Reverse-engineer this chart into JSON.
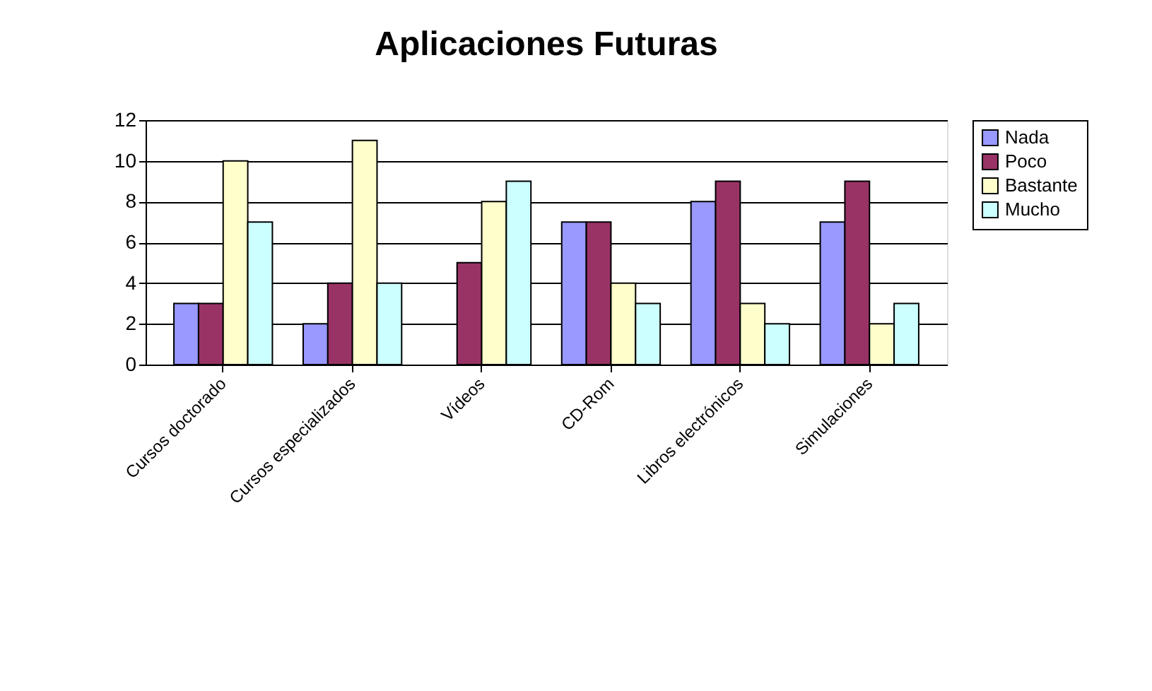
{
  "chart_data": {
    "type": "bar",
    "title": "Aplicaciones Futuras",
    "categories": [
      "Cursos doctorado",
      "Cursos especializados",
      "Vídeos",
      "CD-Rom",
      "Libros electrónicos",
      "Simulaciones"
    ],
    "series": [
      {
        "name": "Nada",
        "color": "#9999ff",
        "values": [
          3,
          2,
          0,
          7,
          8,
          7
        ]
      },
      {
        "name": "Poco",
        "color": "#993366",
        "values": [
          3,
          4,
          5,
          7,
          9,
          9
        ]
      },
      {
        "name": "Bastante",
        "color": "#ffffcc",
        "values": [
          10,
          11,
          8,
          4,
          3,
          2
        ]
      },
      {
        "name": "Mucho",
        "color": "#ccffff",
        "values": [
          7,
          4,
          9,
          3,
          2,
          3
        ]
      }
    ],
    "ylim": [
      0,
      12
    ],
    "yticks": [
      0,
      2,
      4,
      6,
      8,
      10,
      12
    ],
    "grid": "y",
    "legend": "right"
  }
}
